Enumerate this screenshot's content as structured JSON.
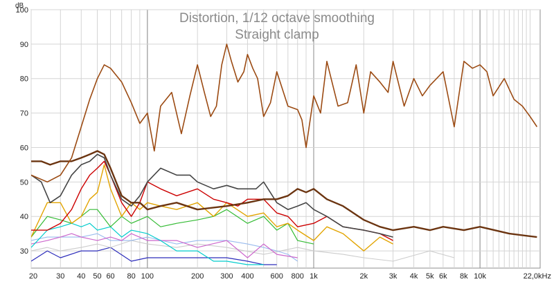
{
  "chart_data": {
    "type": "line",
    "title": "Distortion, 1/12 octave smoothing",
    "subtitle": "Straight clamp",
    "ylabel": "dB",
    "xscale": "log",
    "xlim": [
      20,
      23000
    ],
    "ylim": [
      25,
      100
    ],
    "grid": true,
    "y_ticks": [
      {
        "value": 30,
        "label": "30"
      },
      {
        "value": 40,
        "label": "40"
      },
      {
        "value": 50,
        "label": "50"
      },
      {
        "value": 60,
        "label": "60"
      },
      {
        "value": 70,
        "label": "70"
      },
      {
        "value": 80,
        "label": "80"
      },
      {
        "value": 90,
        "label": "90"
      },
      {
        "value": 100,
        "label": "100"
      }
    ],
    "x_ticks": [
      {
        "value": 20,
        "label": "20"
      },
      {
        "value": 30,
        "label": "30"
      },
      {
        "value": 40,
        "label": "40"
      },
      {
        "value": 50,
        "label": "50"
      },
      {
        "value": 60,
        "label": "60"
      },
      {
        "value": 80,
        "label": "80"
      },
      {
        "value": 100,
        "label": "100"
      },
      {
        "value": 200,
        "label": "200"
      },
      {
        "value": 300,
        "label": "300"
      },
      {
        "value": 400,
        "label": "400"
      },
      {
        "value": 600,
        "label": "600"
      },
      {
        "value": 800,
        "label": "800"
      },
      {
        "value": 1000,
        "label": "1k"
      },
      {
        "value": 2000,
        "label": "2k"
      },
      {
        "value": 3000,
        "label": "3k"
      },
      {
        "value": 4000,
        "label": "4k"
      },
      {
        "value": 5000,
        "label": "5k"
      },
      {
        "value": 6000,
        "label": "6k"
      },
      {
        "value": 8000,
        "label": "8k"
      },
      {
        "value": 10000,
        "label": "10k"
      },
      {
        "value": 22000,
        "label": "22,0kHz"
      }
    ],
    "series": [
      {
        "color": "#9b4a12",
        "width": 1.6,
        "x": [
          20,
          25,
          30,
          35,
          40,
          45,
          50,
          55,
          60,
          70,
          80,
          90,
          100,
          110,
          120,
          140,
          160,
          180,
          200,
          220,
          240,
          260,
          280,
          300,
          320,
          350,
          380,
          400,
          430,
          460,
          500,
          550,
          600,
          700,
          800,
          850,
          900,
          1000,
          1100,
          1200,
          1400,
          1600,
          1800,
          2000,
          2200,
          2500,
          2800,
          3000,
          3500,
          4000,
          4500,
          5000,
          6000,
          7000,
          8000,
          9000,
          10000,
          11000,
          12000,
          14000,
          16000,
          18000,
          20000,
          22000
        ],
        "y": [
          52,
          50,
          52,
          57,
          66,
          74,
          80,
          84,
          83,
          79,
          73,
          67,
          70,
          59,
          72,
          76,
          64,
          75,
          84,
          76,
          69,
          72,
          84,
          90,
          85,
          79,
          82,
          87,
          83,
          80,
          69,
          73,
          82,
          72,
          71,
          68,
          60,
          75,
          70,
          85,
          72,
          73,
          84,
          70,
          82,
          79,
          76,
          85,
          72,
          80,
          75,
          78,
          82,
          66,
          85,
          83,
          84,
          82,
          75,
          80,
          74,
          72,
          69,
          66
        ]
      },
      {
        "color": "#6b3410",
        "width": 2.4,
        "x": [
          20,
          23,
          26,
          30,
          35,
          40,
          45,
          50,
          55,
          60,
          70,
          80,
          90,
          100,
          120,
          150,
          200,
          300,
          400,
          500,
          600,
          700,
          800,
          900,
          1000,
          1200,
          1500,
          2000,
          2500,
          3000,
          4000,
          5000,
          6000,
          8000,
          10000,
          15000,
          22000
        ],
        "y": [
          56,
          56,
          55,
          56,
          56,
          57,
          58,
          59,
          58,
          54,
          46,
          44,
          44,
          42,
          43,
          44,
          42,
          43,
          44,
          45,
          45,
          46,
          48,
          47,
          48,
          45,
          43,
          39,
          37,
          36,
          37,
          36,
          37,
          36,
          37,
          35,
          34
        ]
      },
      {
        "color": "#444444",
        "width": 1.6,
        "x": [
          20,
          23,
          26,
          30,
          35,
          40,
          45,
          50,
          55,
          60,
          70,
          80,
          90,
          100,
          120,
          150,
          180,
          200,
          250,
          300,
          350,
          400,
          450,
          500,
          600,
          700,
          800,
          900,
          1000,
          1200,
          1500,
          2000,
          2500,
          3000
        ],
        "y": [
          52,
          50,
          44,
          46,
          52,
          55,
          56,
          58,
          57,
          52,
          45,
          43,
          46,
          50,
          54,
          52,
          52,
          50,
          48,
          49,
          48,
          48,
          48,
          50,
          44,
          42,
          43,
          44,
          42,
          40,
          37,
          36,
          35,
          34
        ]
      },
      {
        "color": "#cc0000",
        "width": 1.4,
        "x": [
          20,
          25,
          30,
          35,
          40,
          45,
          50,
          55,
          60,
          70,
          80,
          90,
          100,
          120,
          150,
          200,
          250,
          300,
          350,
          400,
          500,
          600,
          700,
          800,
          1000,
          1200,
          1500,
          2000,
          2500,
          3000
        ],
        "y": [
          36,
          36,
          38,
          42,
          48,
          52,
          54,
          56,
          52,
          44,
          40,
          44,
          50,
          48,
          46,
          48,
          45,
          44,
          43,
          45,
          45,
          41,
          40,
          37,
          38,
          40,
          37,
          36,
          35,
          33
        ]
      },
      {
        "color": "#e2a400",
        "width": 1.4,
        "x": [
          20,
          25,
          30,
          35,
          40,
          45,
          50,
          55,
          60,
          70,
          80,
          90,
          100,
          120,
          150,
          200,
          250,
          300,
          400,
          500,
          600,
          700,
          800,
          1000,
          1200,
          1500,
          2000,
          2500,
          3000
        ],
        "y": [
          34,
          44,
          44,
          38,
          40,
          45,
          47,
          55,
          48,
          40,
          44,
          42,
          44,
          43,
          42,
          44,
          40,
          44,
          40,
          41,
          37,
          38,
          36,
          33,
          37,
          35,
          30,
          34,
          32
        ]
      },
      {
        "color": "#33bb33",
        "width": 1.2,
        "x": [
          20,
          25,
          30,
          35,
          40,
          45,
          50,
          60,
          70,
          80,
          100,
          120,
          150,
          200,
          250,
          300,
          400,
          500,
          600,
          700,
          800,
          1000
        ],
        "y": [
          34,
          40,
          39,
          38,
          40,
          42,
          42,
          37,
          40,
          38,
          40,
          37,
          38,
          39,
          40,
          42,
          38,
          40,
          36,
          38,
          33,
          32
        ]
      },
      {
        "color": "#00cccc",
        "width": 1.2,
        "x": [
          20,
          25,
          30,
          35,
          40,
          45,
          50,
          60,
          70,
          80,
          100,
          120,
          150,
          200,
          250,
          300,
          400,
          500
        ],
        "y": [
          31,
          36,
          37,
          38,
          37,
          38,
          36,
          37,
          34,
          36,
          35,
          33,
          30,
          30,
          27,
          27,
          26,
          26
        ]
      },
      {
        "color": "#cc66cc",
        "width": 1.2,
        "x": [
          20,
          25,
          30,
          35,
          40,
          50,
          60,
          70,
          80,
          100,
          150,
          200,
          300,
          400,
          500,
          600,
          800
        ],
        "y": [
          32,
          33,
          34,
          35,
          34,
          33,
          34,
          33,
          35,
          33,
          33,
          31,
          33,
          28,
          32,
          29,
          28
        ]
      },
      {
        "color": "#99bbee",
        "width": 1.1,
        "x": [
          20,
          25,
          30,
          40,
          50,
          60,
          80,
          100,
          150,
          200,
          300,
          400,
          500,
          600,
          700,
          800
        ],
        "y": [
          33,
          34,
          34,
          34,
          35,
          33,
          33,
          34,
          32,
          33,
          33,
          32,
          31,
          30,
          29,
          27
        ]
      },
      {
        "color": "#cccccc",
        "width": 1.1,
        "x": [
          20,
          25,
          30,
          40,
          50,
          60,
          80,
          100,
          150,
          200,
          300,
          500,
          800,
          1000,
          1500,
          2000,
          3000,
          5000,
          7000
        ],
        "y": [
          30,
          31,
          30,
          31,
          32,
          31,
          33,
          32,
          31,
          32,
          31,
          29,
          31,
          30,
          29,
          28,
          27,
          30,
          28
        ]
      },
      {
        "color": "#2c2cbb",
        "width": 1.2,
        "x": [
          20,
          25,
          30,
          40,
          50,
          60,
          80,
          100,
          150,
          200,
          300,
          400,
          500,
          600
        ],
        "y": [
          27,
          30,
          28,
          30,
          30,
          31,
          27,
          28,
          28,
          28,
          28,
          27,
          26,
          26
        ]
      }
    ]
  }
}
